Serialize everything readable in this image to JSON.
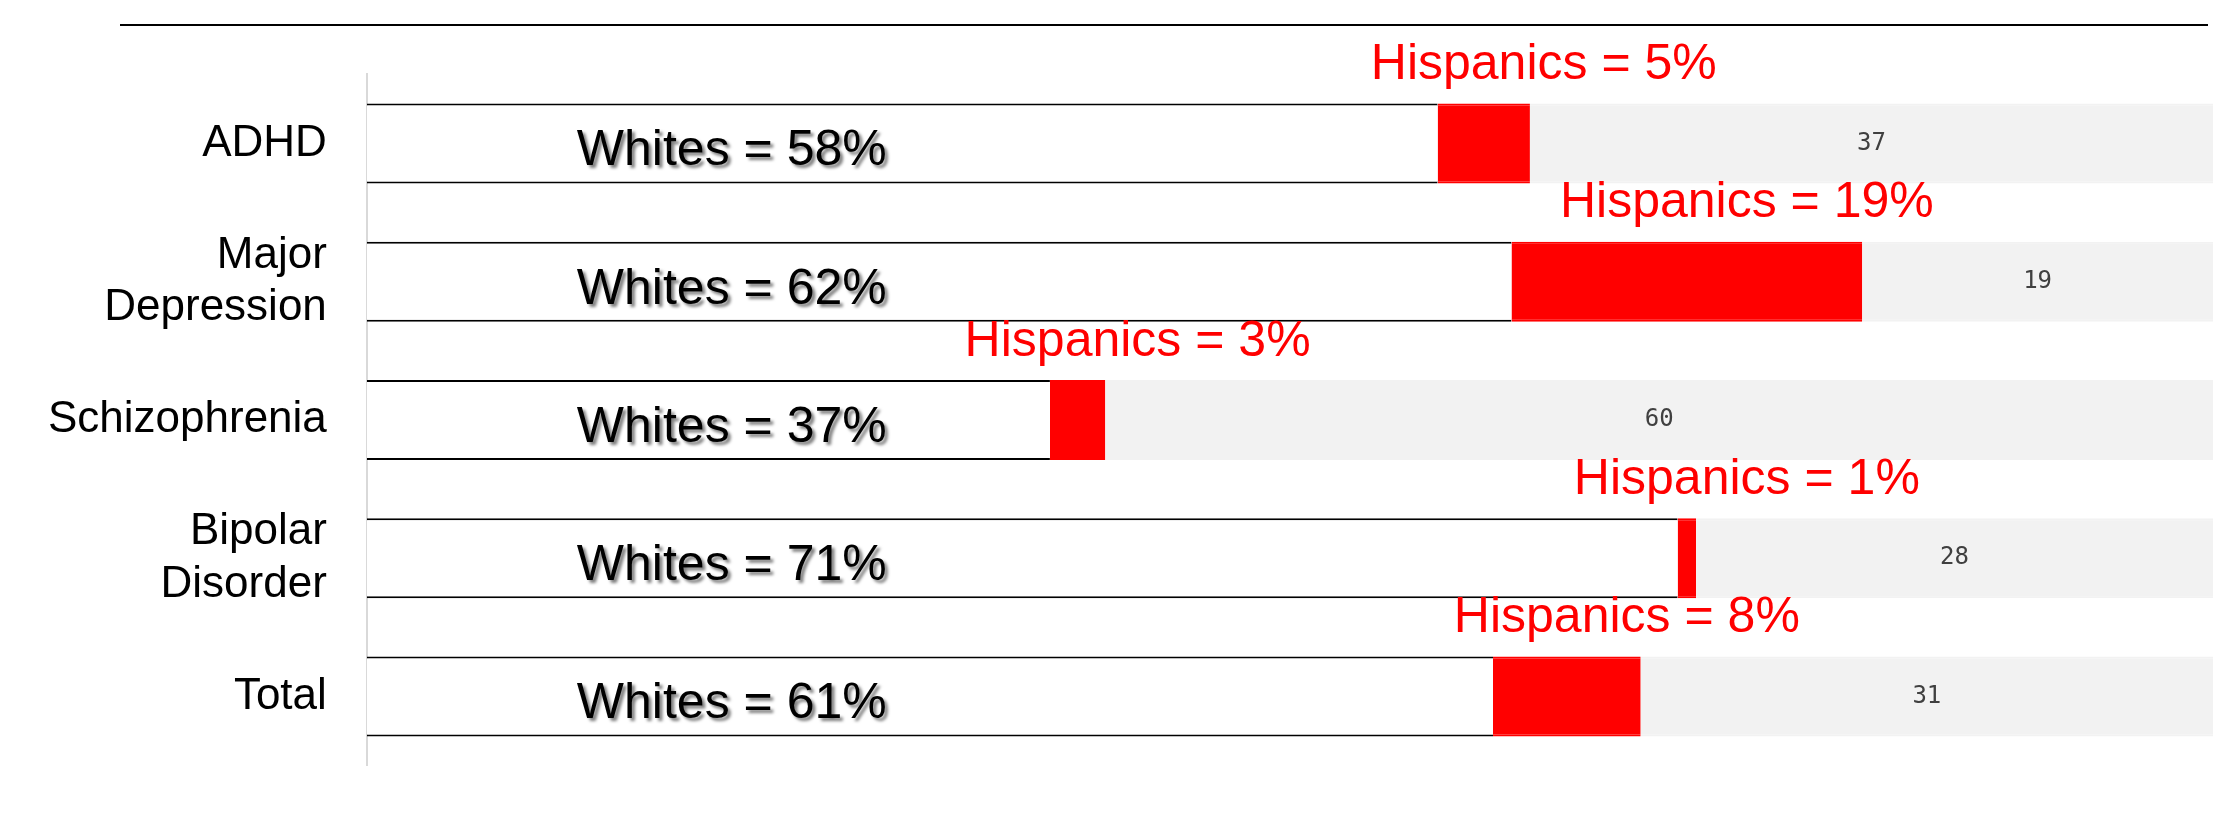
{
  "chart_data": {
    "type": "bar",
    "orientation": "horizontal",
    "stacked": true,
    "tick_labels": "y",
    "legend": false,
    "categories": [
      "ADHD",
      "Major Depression",
      "Schizophrenia",
      "Bipolar Disorder",
      "Total"
    ],
    "xlim": [
      0,
      100
    ],
    "series": [
      {
        "color": "#ffffff",
        "values": [
          58,
          62,
          37,
          71,
          61
        ],
        "value_labels": [
          "Whites = 58%",
          "Whites = 62%",
          "Whites = 37%",
          "Whites = 71%",
          "Whites = 61%"
        ]
      },
      {
        "color": "#ff0000",
        "values": [
          5,
          19,
          3,
          1,
          8
        ],
        "value_labels": [
          "Hispanics = 5%",
          "Hispanics = 19%",
          "Hispanics = 3%",
          "Hispanics = 1%",
          "Hispanics = 8%"
        ]
      },
      {
        "color": "#f2f2f2",
        "values": [
          37,
          19,
          60,
          28,
          31
        ],
        "value_labels": [
          "37",
          "19",
          "60",
          "28",
          "31"
        ]
      }
    ]
  }
}
